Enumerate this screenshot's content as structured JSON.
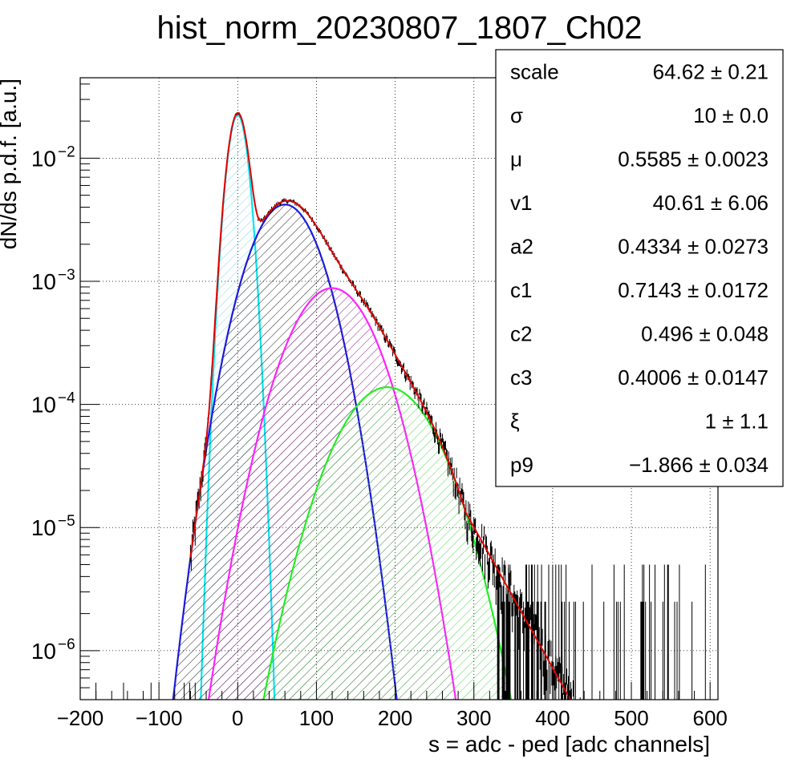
{
  "chart_data": {
    "type": "histogram-fit",
    "title": "hist_norm_20230807_1807_Ch02",
    "xlabel": "s = adc - ped [adc channels]",
    "ylabel": "dN/ds p.d.f. [a.u.]",
    "xlim": [
      -200,
      610
    ],
    "ylim": [
      4e-07,
      0.045
    ],
    "y_scale": "log",
    "grid": true,
    "x_ticks": [
      -200,
      -100,
      0,
      100,
      200,
      300,
      400,
      500,
      600
    ],
    "x_tick_labels": [
      "−200",
      "−100",
      "0",
      "100",
      "200",
      "300",
      "400",
      "500",
      "600"
    ],
    "y_ticks": [
      {
        "value": 1e-06,
        "base": "10",
        "exp": "−6"
      },
      {
        "value": 1e-05,
        "base": "10",
        "exp": "−5"
      },
      {
        "value": 0.0001,
        "base": "10",
        "exp": "−4"
      },
      {
        "value": 0.001,
        "base": "10",
        "exp": "−3"
      },
      {
        "value": 0.01,
        "base": "10",
        "exp": "−2"
      }
    ],
    "components": [
      {
        "color": "#00e5ee",
        "hatch": "#7fd6e8",
        "mean": 0,
        "sigma": 10,
        "peak": 0.0225
      },
      {
        "color": "#1a1adb",
        "hatch": "#222222",
        "mean": 60,
        "sigma": 33,
        "peak": 0.0042
      },
      {
        "color": "#ff22ff",
        "hatch": "#8a2a8a",
        "mean": 120,
        "sigma": 40,
        "peak": 0.00088
      },
      {
        "color": "#22ee22",
        "hatch": "#55d455",
        "mean": 190,
        "sigma": 46,
        "peak": 0.000138
      }
    ],
    "total_fit_color": "#e00000",
    "data_color": "#000000",
    "stats_box": [
      {
        "name": "scale",
        "value": "64.62 ± 0.21"
      },
      {
        "name": "σ",
        "value": "10 ± 0.0"
      },
      {
        "name": "μ",
        "value": "0.5585 ± 0.0023"
      },
      {
        "name": "v1",
        "value": "40.61 ± 6.06"
      },
      {
        "name": "a2",
        "value": "0.4334 ± 0.0273"
      },
      {
        "name": "c1",
        "value": "0.7143 ± 0.0172"
      },
      {
        "name": "c2",
        "value": "0.496 ± 0.048"
      },
      {
        "name": "c3",
        "value": "0.4006 ± 0.0147"
      },
      {
        "name": "ξ",
        "value": "1 ± 1.1"
      },
      {
        "name": "p9",
        "value": "−1.866 ± 0.034"
      }
    ]
  }
}
